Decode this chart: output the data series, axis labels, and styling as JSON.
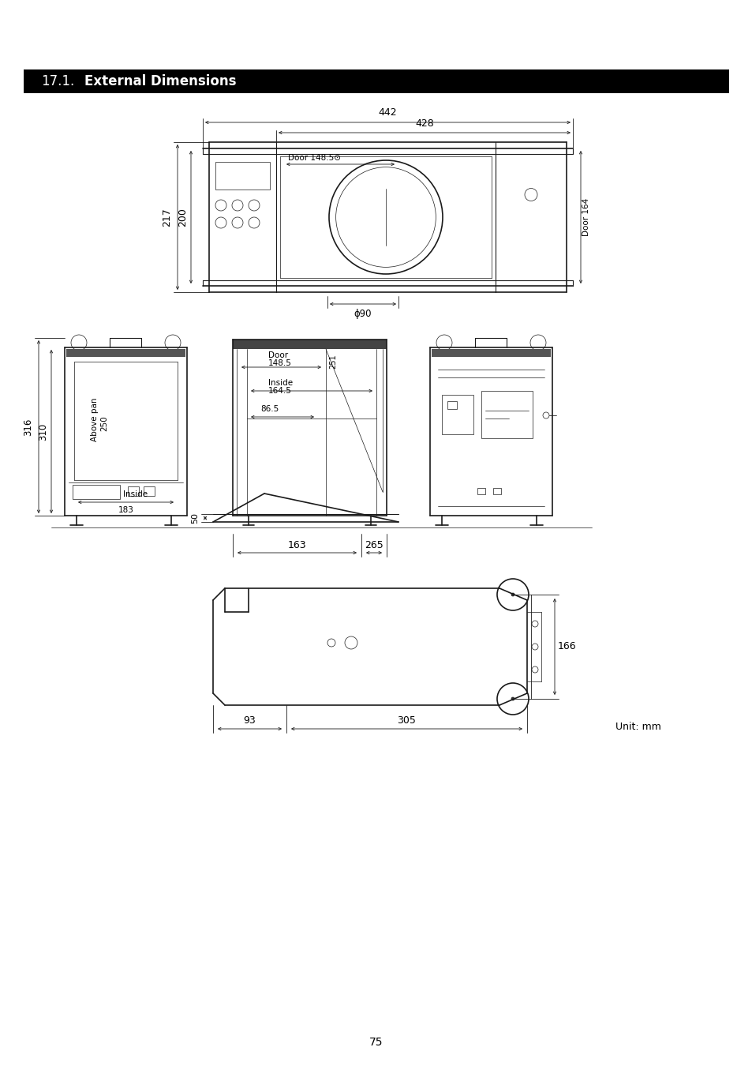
{
  "title_normal": "17.1.",
  "title_bold": "External Dimensions",
  "page_number": "75",
  "unit_text": "Unit: mm",
  "lc": "#1a1a1a",
  "bg": "#ffffff"
}
